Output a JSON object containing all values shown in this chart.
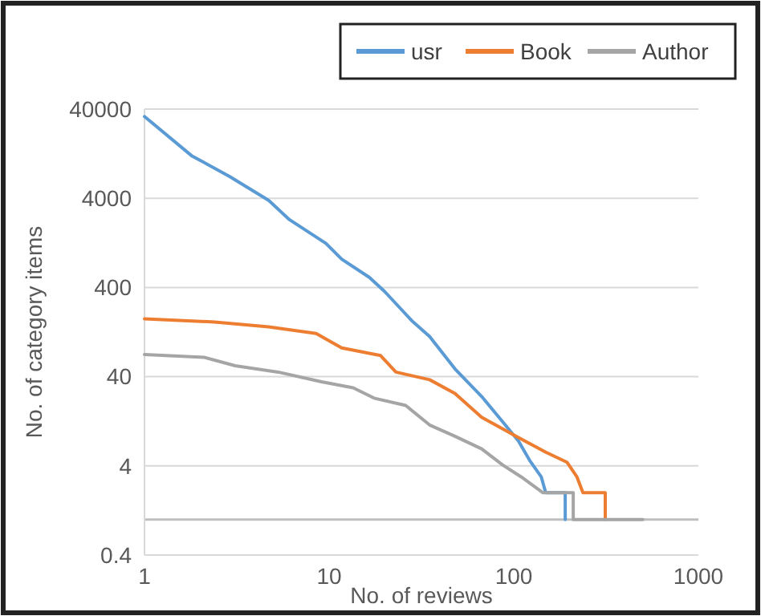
{
  "chart_data": {
    "type": "line",
    "xlabel": "No. of reviews",
    "ylabel": "No. of category items",
    "log": "xy",
    "grid": "y",
    "legend": "top right",
    "xlim": [
      1,
      1000
    ],
    "xticks": [
      1,
      10,
      100,
      1000
    ],
    "ylim": [
      0.4,
      40000
    ],
    "yticks": [
      0.4,
      4,
      40,
      400,
      4000,
      40000
    ],
    "ref_lines": [
      {
        "axis": "y",
        "value": 1,
        "color": "#bfbfbf"
      }
    ],
    "series": [
      {
        "name": "usr",
        "color": "#5b9bd5",
        "x": [
          1,
          1.8,
          2.9,
          4.7,
          6.1,
          9.6,
          11.7,
          16.5,
          20,
          28,
          35,
          48,
          67,
          87,
          106,
          122,
          141,
          149,
          190,
          190
        ],
        "values": [
          33000,
          12000,
          7000,
          3800,
          2300,
          1250,
          830,
          520,
          360,
          170,
          113,
          49,
          24,
          12.5,
          7.6,
          4.6,
          3,
          2,
          2,
          1
        ]
      },
      {
        "name": "Book",
        "color": "#ed7d31",
        "x": [
          1,
          2.4,
          4.7,
          8.5,
          11.7,
          19,
          23,
          35,
          48,
          67,
          106,
          149,
          194,
          220,
          237,
          313,
          313
        ],
        "values": [
          178,
          164,
          145,
          122,
          84,
          69,
          45,
          37,
          26,
          14,
          8.3,
          5.7,
          4.4,
          3,
          2,
          2,
          1
        ]
      },
      {
        "name": "Author",
        "color": "#a5a5a5",
        "x": [
          1,
          2.1,
          3.1,
          5.3,
          9.1,
          13.5,
          17.5,
          26,
          35,
          48,
          67,
          87,
          110,
          144,
          210,
          210,
          500
        ],
        "values": [
          71,
          66,
          53,
          45,
          35,
          30,
          23,
          19,
          11.5,
          8.6,
          6.2,
          4.1,
          3,
          2,
          2,
          1,
          1
        ]
      }
    ]
  }
}
